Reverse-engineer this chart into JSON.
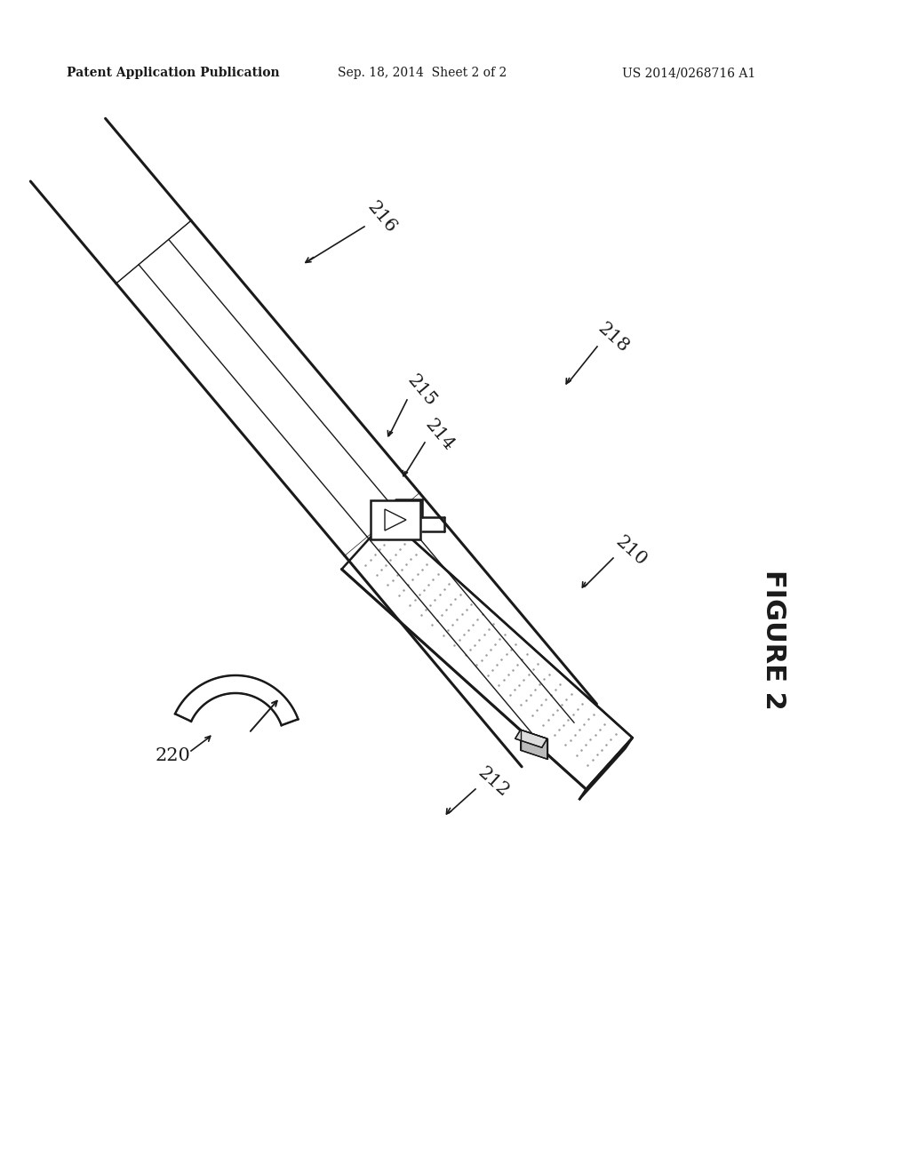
{
  "bg_color": "#ffffff",
  "line_color": "#1a1a1a",
  "header_left": "Patent Application Publication",
  "header_mid": "Sep. 18, 2014  Sheet 2 of 2",
  "header_right": "US 2014/0268716 A1",
  "figure_label": "FIGURE 2",
  "lw_main": 1.8,
  "lw_thin": 1.0,
  "lw_thick": 2.2,
  "label_fontsize": 15,
  "header_fontsize": 10,
  "fig2_fontsize": 22
}
